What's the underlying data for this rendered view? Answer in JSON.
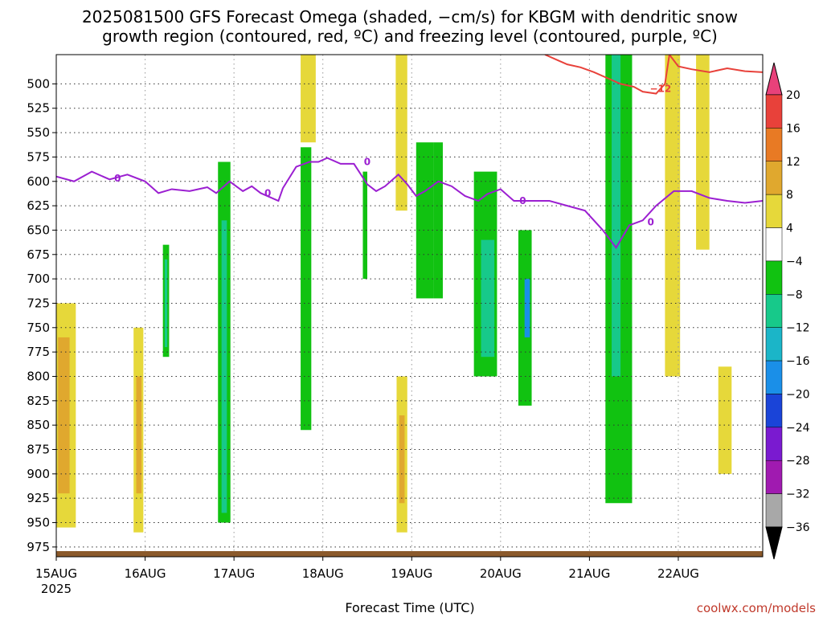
{
  "chart_data": {
    "type": "heatmap",
    "title_lines": [
      "2025081500 GFS Forecast Omega (shaded, −cm/s) for KBGM with dendritic snow",
      "growth region (contoured, red, ºC) and freezing level (contoured, purple, ºC)"
    ],
    "xlabel": "Forecast Time (UTC)",
    "ylabel": "",
    "credit": "coolwx.com/models",
    "x_ticks": [
      "15AUG",
      "16AUG",
      "17AUG",
      "18AUG",
      "19AUG",
      "20AUG",
      "21AUG",
      "22AUG"
    ],
    "x_tick_sub": "2025",
    "y_ticks": [
      500,
      525,
      550,
      575,
      600,
      625,
      650,
      675,
      700,
      725,
      750,
      775,
      800,
      825,
      850,
      875,
      900,
      925,
      950,
      975
    ],
    "x_range_days": [
      0,
      7.95
    ],
    "y_range_hpa": [
      470,
      985
    ],
    "grid": true,
    "colorbar": {
      "labels": [
        "20",
        "16",
        "12",
        "8",
        "4",
        "−4",
        "−8",
        "−12",
        "−16",
        "−20",
        "−24",
        "−28",
        "−32",
        "−36"
      ],
      "colors": [
        "#e8417a",
        "#e8413a",
        "#e87a24",
        "#e0a82e",
        "#e6d83a",
        "#ffffff",
        "#11c211",
        "#17c98a",
        "#1bb5c8",
        "#1a8fe8",
        "#1a44d8",
        "#7a1ad0",
        "#a01ab0",
        "#a8a8a8",
        "#000000"
      ]
    },
    "omega_regions": [
      {
        "t": [
          0.0,
          0.22
        ],
        "p": [
          725,
          955
        ],
        "v": 6
      },
      {
        "t": [
          0.02,
          0.15
        ],
        "p": [
          760,
          920
        ],
        "v": 10
      },
      {
        "t": [
          0.87,
          0.98
        ],
        "p": [
          750,
          960
        ],
        "v": 6
      },
      {
        "t": [
          0.9,
          0.96
        ],
        "p": [
          800,
          920
        ],
        "v": 10
      },
      {
        "t": [
          1.2,
          1.27
        ],
        "p": [
          665,
          780
        ],
        "v": -7
      },
      {
        "t": [
          1.22,
          1.25
        ],
        "p": [
          680,
          770
        ],
        "v": -11
      },
      {
        "t": [
          1.82,
          1.96
        ],
        "p": [
          580,
          950
        ],
        "v": -7
      },
      {
        "t": [
          1.86,
          1.92
        ],
        "p": [
          640,
          940
        ],
        "v": -10
      },
      {
        "t": [
          2.75,
          2.87
        ],
        "p": [
          565,
          855
        ],
        "v": -7
      },
      {
        "t": [
          3.83,
          3.95
        ],
        "p": [
          800,
          960
        ],
        "v": 6
      },
      {
        "t": [
          3.86,
          3.92
        ],
        "p": [
          840,
          930
        ],
        "v": 10
      },
      {
        "t": [
          3.45,
          3.5
        ],
        "p": [
          590,
          700
        ],
        "v": -7
      },
      {
        "t": [
          4.05,
          4.25
        ],
        "p": [
          560,
          720
        ],
        "v": -7
      },
      {
        "t": [
          4.7,
          4.96
        ],
        "p": [
          590,
          800
        ],
        "v": -7
      },
      {
        "t": [
          4.78,
          4.93
        ],
        "p": [
          660,
          780
        ],
        "v": -10
      },
      {
        "t": [
          5.2,
          5.35
        ],
        "p": [
          650,
          830
        ],
        "v": -7
      },
      {
        "t": [
          5.27,
          5.33
        ],
        "p": [
          700,
          760
        ],
        "v": -16
      },
      {
        "t": [
          4.25,
          4.35
        ],
        "p": [
          560,
          720
        ],
        "v": -7
      },
      {
        "t": [
          6.18,
          6.48
        ],
        "p": [
          470,
          930
        ],
        "v": -7
      },
      {
        "t": [
          6.25,
          6.35
        ],
        "p": [
          470,
          800
        ],
        "v": -11
      },
      {
        "t": [
          6.85,
          7.02
        ],
        "p": [
          470,
          800
        ],
        "v": 5
      },
      {
        "t": [
          7.2,
          7.35
        ],
        "p": [
          470,
          670
        ],
        "v": 5
      },
      {
        "t": [
          7.45,
          7.6
        ],
        "p": [
          790,
          900
        ],
        "v": 5
      },
      {
        "t": [
          3.82,
          3.95
        ],
        "p": [
          470,
          630
        ],
        "v": 5
      },
      {
        "t": [
          2.75,
          2.92
        ],
        "p": [
          470,
          560
        ],
        "v": 5
      }
    ],
    "freezing_level_0C": {
      "t": [
        0.0,
        0.2,
        0.4,
        0.6,
        0.8,
        1.0,
        1.15,
        1.3,
        1.5,
        1.7,
        1.8,
        1.95,
        2.1,
        2.2,
        2.3,
        2.5,
        2.55,
        2.7,
        2.85,
        2.95,
        3.05,
        3.2,
        3.35,
        3.5,
        3.6,
        3.7,
        3.85,
        3.95,
        4.05,
        4.15,
        4.3,
        4.45,
        4.6,
        4.75,
        4.85,
        5.0,
        5.15,
        5.35,
        5.55,
        5.75,
        5.95,
        6.15,
        6.3,
        6.45,
        6.6,
        6.75,
        6.95,
        7.15,
        7.35,
        7.55,
        7.75,
        7.95
      ],
      "p": [
        595,
        600,
        590,
        598,
        593,
        600,
        612,
        608,
        610,
        606,
        612,
        600,
        610,
        605,
        612,
        620,
        607,
        585,
        580,
        580,
        576,
        582,
        582,
        603,
        610,
        605,
        593,
        603,
        615,
        610,
        600,
        605,
        615,
        620,
        613,
        608,
        620,
        620,
        620,
        625,
        630,
        650,
        668,
        645,
        640,
        625,
        610,
        610,
        617,
        620,
        622,
        620
      ]
    },
    "dgz_minus12C": {
      "t": [
        5.5,
        5.65,
        5.75,
        5.9,
        6.05,
        6.2,
        6.35,
        6.5,
        6.6,
        6.75,
        6.85,
        6.9,
        7.0,
        7.15,
        7.35,
        7.55,
        7.75,
        7.95
      ],
      "p": [
        470,
        476,
        480,
        483,
        488,
        494,
        500,
        503,
        508,
        510,
        500,
        470,
        482,
        485,
        488,
        484,
        487,
        488
      ]
    },
    "contour_labels": [
      {
        "text": "0",
        "t": 0.69,
        "p": 597
      },
      {
        "text": "0",
        "t": 2.38,
        "p": 612
      },
      {
        "text": "0",
        "t": 3.5,
        "p": 580
      },
      {
        "text": "0",
        "t": 5.25,
        "p": 620
      },
      {
        "text": "0",
        "t": 6.69,
        "p": 642
      },
      {
        "text": "−12",
        "t": 6.8,
        "p": 505
      }
    ]
  }
}
